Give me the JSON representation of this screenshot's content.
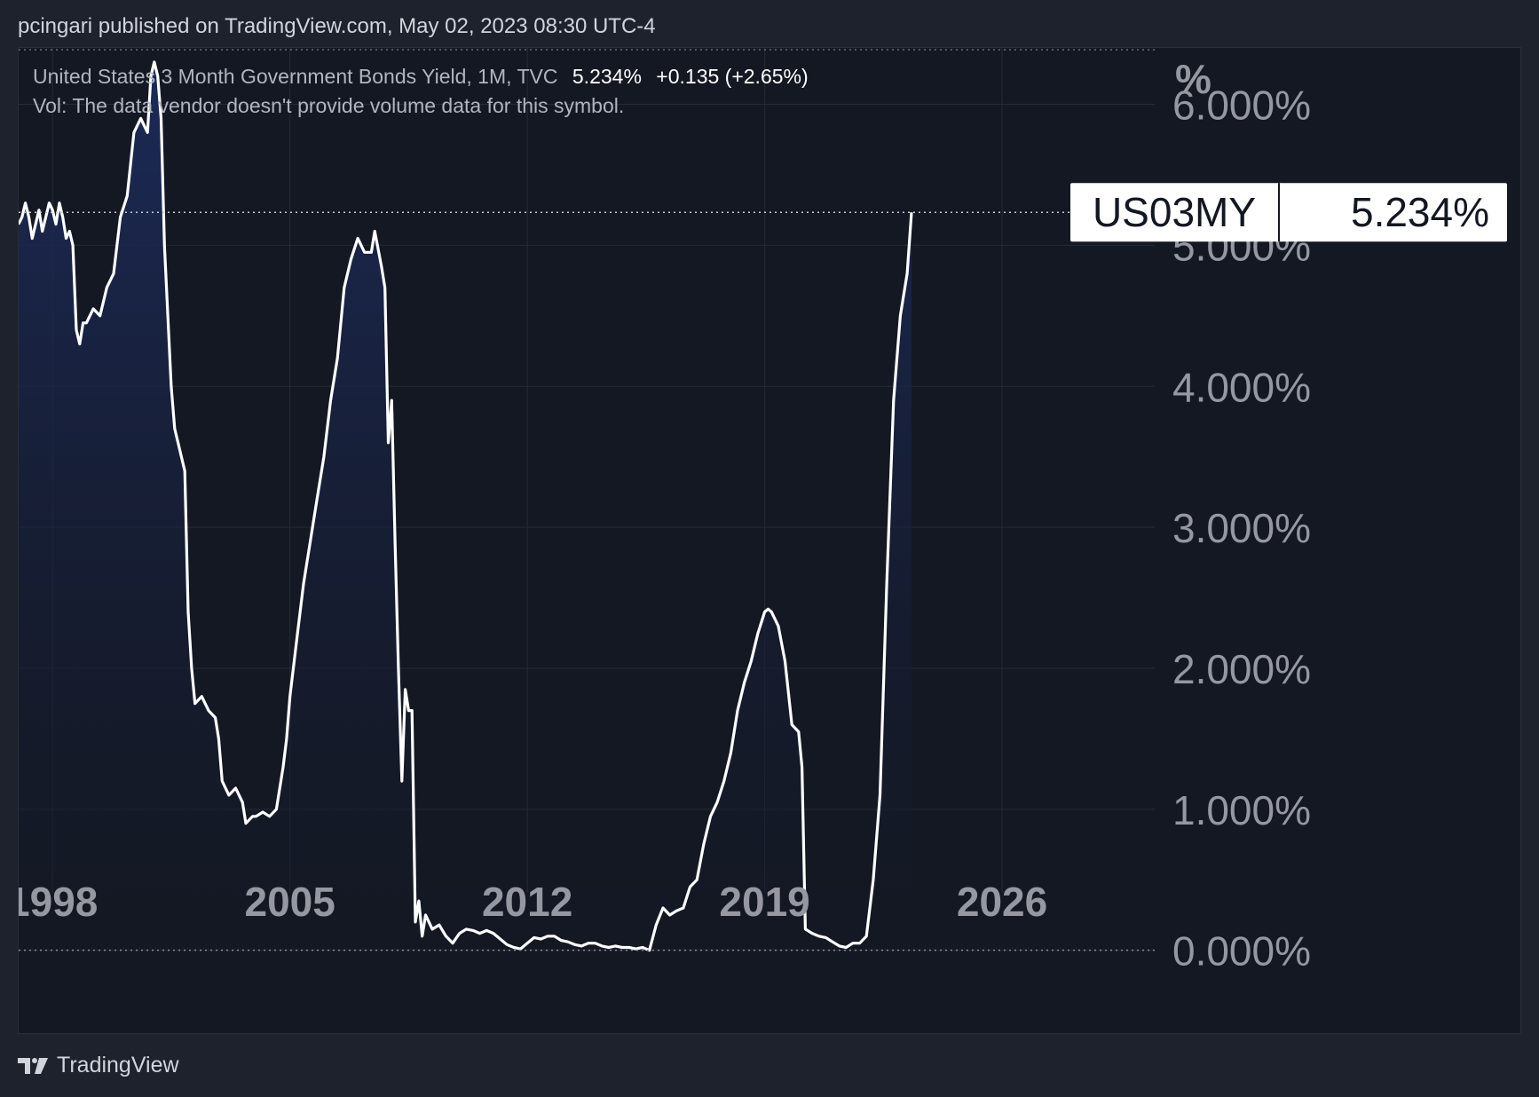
{
  "publish_line": "pcingari published on TradingView.com, May 02, 2023 08:30 UTC-4",
  "legend": {
    "symbol_desc": "United States 3 Month Government Bonds Yield, 1M, TVC",
    "last": "5.234%",
    "change": "+0.135 (+2.65%)",
    "vol_note": "Vol: The data vendor doesn't provide volume data for this symbol."
  },
  "price_badge": {
    "ticker": "US03MY",
    "value": "5.234%"
  },
  "footer": {
    "brand": "TradingView"
  },
  "colors": {
    "background": "#141823",
    "line": "#ffffff",
    "area_top": "#1c2b5a",
    "grid": "#262b38",
    "axis_text": "#9598a1"
  },
  "chart_data": {
    "type": "area",
    "title": "",
    "xlabel": "",
    "ylabel": "%",
    "x_ticks": [
      "1998",
      "2005",
      "2012",
      "2019",
      "2026"
    ],
    "y_ticks": [
      "0.000%",
      "1.000%",
      "2.000%",
      "3.000%",
      "4.000%",
      "5.000%",
      "6.000%"
    ],
    "ylim": [
      -0.6,
      6.4
    ],
    "xlim": [
      1997.0,
      2030.5
    ],
    "grid": true,
    "series": [
      {
        "values": [
          [
            1997.0,
            5.15
          ],
          [
            1997.1,
            5.2
          ],
          [
            1997.2,
            5.3
          ],
          [
            1997.3,
            5.2
          ],
          [
            1997.4,
            5.05
          ],
          [
            1997.5,
            5.15
          ],
          [
            1997.6,
            5.25
          ],
          [
            1997.7,
            5.1
          ],
          [
            1997.8,
            5.2
          ],
          [
            1997.9,
            5.3
          ],
          [
            1998.0,
            5.25
          ],
          [
            1998.1,
            5.15
          ],
          [
            1998.2,
            5.3
          ],
          [
            1998.3,
            5.2
          ],
          [
            1998.4,
            5.05
          ],
          [
            1998.5,
            5.1
          ],
          [
            1998.6,
            5.0
          ],
          [
            1998.7,
            4.4
          ],
          [
            1998.8,
            4.3
          ],
          [
            1998.9,
            4.45
          ],
          [
            1999.0,
            4.45
          ],
          [
            1999.2,
            4.55
          ],
          [
            1999.4,
            4.5
          ],
          [
            1999.6,
            4.7
          ],
          [
            1999.8,
            4.8
          ],
          [
            2000.0,
            5.2
          ],
          [
            2000.2,
            5.35
          ],
          [
            2000.4,
            5.8
          ],
          [
            2000.6,
            5.9
          ],
          [
            2000.8,
            5.8
          ],
          [
            2000.9,
            6.2
          ],
          [
            2001.0,
            6.3
          ],
          [
            2001.1,
            6.2
          ],
          [
            2001.2,
            5.9
          ],
          [
            2001.3,
            5.0
          ],
          [
            2001.5,
            4.0
          ],
          [
            2001.6,
            3.7
          ],
          [
            2001.8,
            3.5
          ],
          [
            2001.9,
            3.4
          ],
          [
            2002.0,
            2.4
          ],
          [
            2002.1,
            2.0
          ],
          [
            2002.2,
            1.75
          ],
          [
            2002.4,
            1.8
          ],
          [
            2002.6,
            1.7
          ],
          [
            2002.8,
            1.65
          ],
          [
            2002.9,
            1.5
          ],
          [
            2003.0,
            1.2
          ],
          [
            2003.2,
            1.1
          ],
          [
            2003.4,
            1.15
          ],
          [
            2003.6,
            1.05
          ],
          [
            2003.7,
            0.9
          ],
          [
            2003.9,
            0.95
          ],
          [
            2004.0,
            0.95
          ],
          [
            2004.2,
            0.98
          ],
          [
            2004.4,
            0.95
          ],
          [
            2004.6,
            1.0
          ],
          [
            2004.8,
            1.3
          ],
          [
            2004.9,
            1.5
          ],
          [
            2005.0,
            1.8
          ],
          [
            2005.2,
            2.2
          ],
          [
            2005.4,
            2.6
          ],
          [
            2005.6,
            2.9
          ],
          [
            2005.8,
            3.2
          ],
          [
            2006.0,
            3.5
          ],
          [
            2006.2,
            3.9
          ],
          [
            2006.4,
            4.2
          ],
          [
            2006.6,
            4.7
          ],
          [
            2006.8,
            4.9
          ],
          [
            2007.0,
            5.05
          ],
          [
            2007.2,
            4.95
          ],
          [
            2007.4,
            4.95
          ],
          [
            2007.5,
            5.1
          ],
          [
            2007.7,
            4.85
          ],
          [
            2007.8,
            4.7
          ],
          [
            2007.9,
            3.6
          ],
          [
            2008.0,
            3.9
          ],
          [
            2008.1,
            2.9
          ],
          [
            2008.2,
            2.0
          ],
          [
            2008.3,
            1.2
          ],
          [
            2008.4,
            1.85
          ],
          [
            2008.5,
            1.7
          ],
          [
            2008.6,
            1.7
          ],
          [
            2008.7,
            0.2
          ],
          [
            2008.8,
            0.35
          ],
          [
            2008.9,
            0.1
          ],
          [
            2009.0,
            0.25
          ],
          [
            2009.2,
            0.15
          ],
          [
            2009.4,
            0.18
          ],
          [
            2009.6,
            0.1
          ],
          [
            2009.8,
            0.05
          ],
          [
            2010.0,
            0.12
          ],
          [
            2010.2,
            0.15
          ],
          [
            2010.4,
            0.14
          ],
          [
            2010.6,
            0.12
          ],
          [
            2010.8,
            0.14
          ],
          [
            2011.0,
            0.12
          ],
          [
            2011.2,
            0.08
          ],
          [
            2011.4,
            0.04
          ],
          [
            2011.6,
            0.02
          ],
          [
            2011.8,
            0.01
          ],
          [
            2012.0,
            0.05
          ],
          [
            2012.2,
            0.09
          ],
          [
            2012.4,
            0.08
          ],
          [
            2012.6,
            0.1
          ],
          [
            2012.8,
            0.1
          ],
          [
            2013.0,
            0.07
          ],
          [
            2013.2,
            0.06
          ],
          [
            2013.4,
            0.04
          ],
          [
            2013.6,
            0.03
          ],
          [
            2013.8,
            0.05
          ],
          [
            2014.0,
            0.05
          ],
          [
            2014.2,
            0.03
          ],
          [
            2014.4,
            0.02
          ],
          [
            2014.6,
            0.03
          ],
          [
            2014.8,
            0.02
          ],
          [
            2015.0,
            0.02
          ],
          [
            2015.2,
            0.01
          ],
          [
            2015.4,
            0.02
          ],
          [
            2015.6,
            0.0
          ],
          [
            2015.8,
            0.18
          ],
          [
            2016.0,
            0.3
          ],
          [
            2016.2,
            0.25
          ],
          [
            2016.4,
            0.28
          ],
          [
            2016.6,
            0.3
          ],
          [
            2016.8,
            0.45
          ],
          [
            2017.0,
            0.5
          ],
          [
            2017.2,
            0.75
          ],
          [
            2017.4,
            0.95
          ],
          [
            2017.6,
            1.05
          ],
          [
            2017.8,
            1.2
          ],
          [
            2018.0,
            1.4
          ],
          [
            2018.2,
            1.7
          ],
          [
            2018.4,
            1.9
          ],
          [
            2018.6,
            2.05
          ],
          [
            2018.8,
            2.25
          ],
          [
            2019.0,
            2.4
          ],
          [
            2019.1,
            2.42
          ],
          [
            2019.2,
            2.4
          ],
          [
            2019.4,
            2.3
          ],
          [
            2019.6,
            2.05
          ],
          [
            2019.8,
            1.6
          ],
          [
            2020.0,
            1.55
          ],
          [
            2020.1,
            1.3
          ],
          [
            2020.2,
            0.15
          ],
          [
            2020.4,
            0.12
          ],
          [
            2020.6,
            0.1
          ],
          [
            2020.8,
            0.09
          ],
          [
            2021.0,
            0.06
          ],
          [
            2021.2,
            0.03
          ],
          [
            2021.4,
            0.02
          ],
          [
            2021.6,
            0.05
          ],
          [
            2021.8,
            0.05
          ],
          [
            2022.0,
            0.1
          ],
          [
            2022.2,
            0.5
          ],
          [
            2022.4,
            1.1
          ],
          [
            2022.6,
            2.6
          ],
          [
            2022.8,
            3.9
          ],
          [
            2023.0,
            4.5
          ],
          [
            2023.2,
            4.8
          ],
          [
            2023.33,
            5.234
          ]
        ]
      }
    ]
  }
}
